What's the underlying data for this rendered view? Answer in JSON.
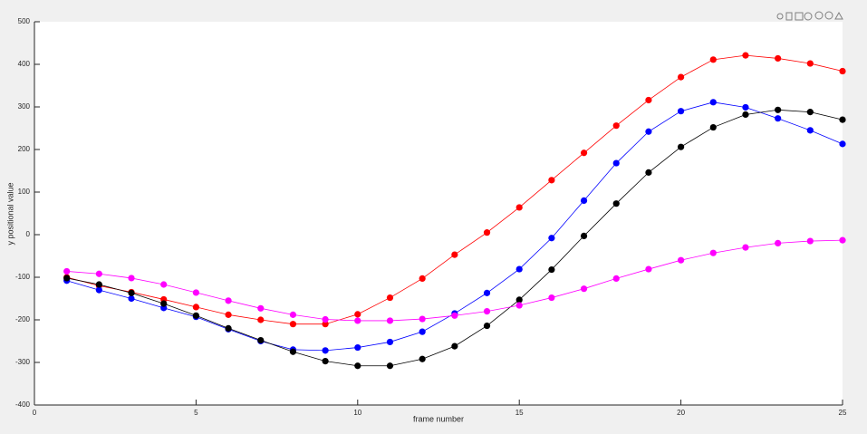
{
  "chart_data": {
    "type": "line",
    "xlabel": "frame number",
    "ylabel": "y positional value",
    "x": [
      1,
      2,
      3,
      4,
      5,
      6,
      7,
      8,
      9,
      10,
      11,
      12,
      13,
      14,
      15,
      16,
      17,
      18,
      19,
      20,
      21,
      22,
      23,
      24,
      25
    ],
    "series": [
      {
        "color": "#ff0000",
        "values": [
          -100,
          -120,
          -135,
          -152,
          -170,
          -188,
          -200,
          -210,
          -210,
          -187,
          -148,
          -103,
          -47,
          5,
          64,
          128,
          192,
          256,
          316,
          370,
          411,
          421,
          414,
          402,
          384
        ]
      },
      {
        "color": "#0000ff",
        "values": [
          -108,
          -130,
          -150,
          -172,
          -193,
          -222,
          -250,
          -270,
          -272,
          -265,
          -252,
          -228,
          -185,
          -137,
          -81,
          -8,
          80,
          168,
          242,
          290,
          311,
          299,
          273,
          245,
          213
        ]
      },
      {
        "color": "#000000",
        "values": [
          -102,
          -117,
          -137,
          -162,
          -190,
          -220,
          -248,
          -275,
          -297,
          -308,
          -308,
          -292,
          -262,
          -214,
          -153,
          -82,
          -3,
          73,
          146,
          206,
          252,
          282,
          293,
          288,
          270
        ]
      },
      {
        "color": "#ff00ff",
        "values": [
          -86,
          -92,
          -102,
          -117,
          -136,
          -155,
          -173,
          -188,
          -199,
          -202,
          -202,
          -198,
          -190,
          -180,
          -166,
          -148,
          -127,
          -103,
          -81,
          -60,
          -43,
          -30,
          -20,
          -15,
          -13
        ]
      }
    ],
    "xlim": [
      0,
      25
    ],
    "xticks": [
      0,
      5,
      10,
      15,
      20,
      25
    ],
    "ylim": [
      -400,
      500
    ],
    "yticks": [
      -400,
      -300,
      -200,
      -100,
      0,
      100,
      200,
      300,
      400,
      500
    ],
    "grid": false
  }
}
